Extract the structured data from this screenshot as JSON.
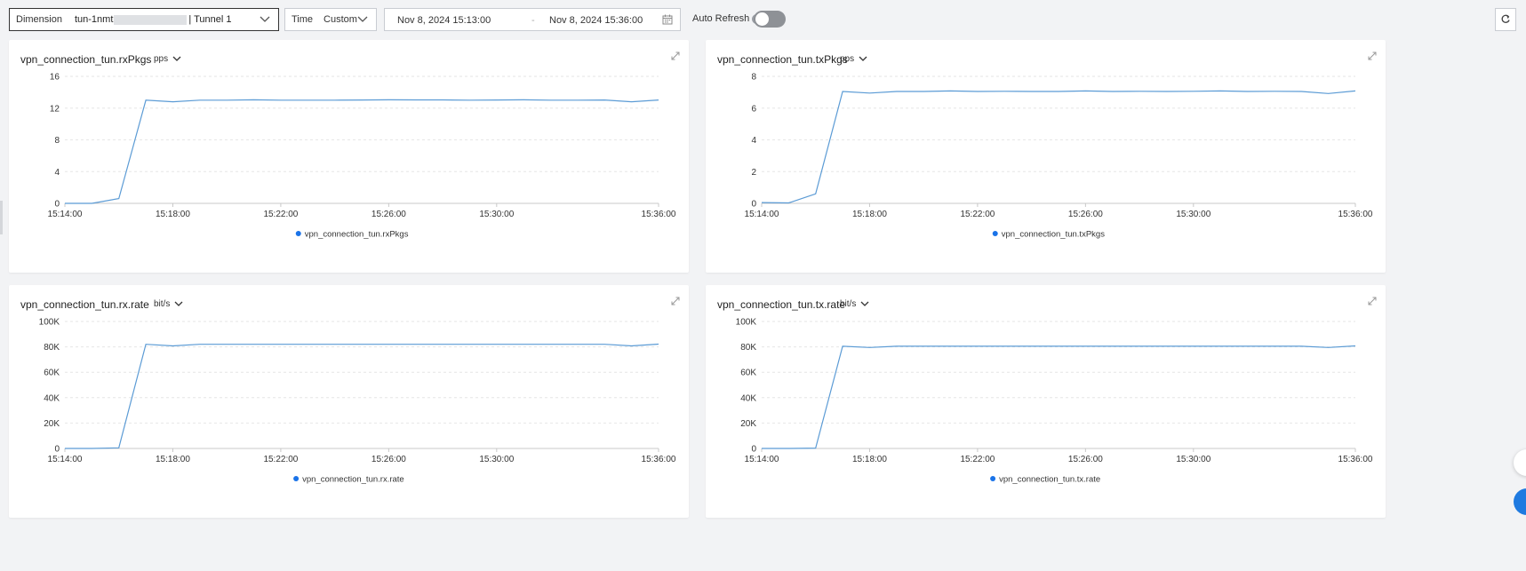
{
  "toolbar": {
    "dimension_label": "Dimension",
    "dimension_value_prefix": "tun-1nmt",
    "dimension_value_suffix": "| Tunnel 1",
    "time_label": "Time",
    "time_value": "Custom",
    "range_start": "Nov 8, 2024 15:13:00",
    "range_sep": "-",
    "range_end": "Nov 8, 2024 15:36:00",
    "auto_refresh_label": "Auto Refresh",
    "auto_refresh_help": "?",
    "auto_refresh_on": false
  },
  "colors": {
    "series": "#5b9bd5",
    "legend_dot": "#1a73e8",
    "grid": "#e6e6e6",
    "axis": "#c8c8c8"
  },
  "panels": [
    {
      "title": "vpn_connection_tun.rxPkgs",
      "unit": "pps"
    },
    {
      "title": "vpn_connection_tun.txPkgs",
      "unit": "pps"
    },
    {
      "title": "vpn_connection_tun.rx.rate",
      "unit": "bit/s"
    },
    {
      "title": "vpn_connection_tun.tx.rate",
      "unit": "bit/s"
    }
  ],
  "chart_data": [
    {
      "type": "line",
      "x_ticks": [
        "15:14:00",
        "15:18:00",
        "15:22:00",
        "15:26:00",
        "15:30:00",
        "15:36:00"
      ],
      "x_tick_minutes": [
        0,
        4,
        8,
        12,
        16,
        22
      ],
      "y_ticks": [
        "0",
        "4",
        "8",
        "12",
        "16"
      ],
      "ylim": [
        0,
        16
      ],
      "grid": true,
      "legend_position": "bottom",
      "series": [
        {
          "name": "vpn_connection_tun.rxPkgs",
          "x": [
            0,
            1,
            2,
            3,
            4,
            5,
            6,
            7,
            8,
            9,
            10,
            11,
            12,
            13,
            14,
            15,
            16,
            17,
            18,
            19,
            20,
            21,
            22
          ],
          "values": [
            0,
            0,
            0.6,
            13.0,
            12.8,
            13.0,
            13.0,
            13.05,
            13.0,
            13.0,
            13.0,
            13.02,
            13.05,
            13.03,
            13.03,
            13.0,
            13.02,
            13.05,
            13.0,
            13.0,
            13.02,
            12.8,
            13.02
          ]
        }
      ]
    },
    {
      "type": "line",
      "x_ticks": [
        "15:14:00",
        "15:18:00",
        "15:22:00",
        "15:26:00",
        "15:30:00",
        "15:36:00"
      ],
      "x_tick_minutes": [
        0,
        4,
        8,
        12,
        16,
        22
      ],
      "y_ticks": [
        "0",
        "2",
        "4",
        "6",
        "8"
      ],
      "ylim": [
        0,
        8
      ],
      "grid": true,
      "legend_position": "bottom",
      "series": [
        {
          "name": "vpn_connection_tun.txPkgs",
          "x": [
            0,
            1,
            2,
            3,
            4,
            5,
            6,
            7,
            8,
            9,
            10,
            11,
            12,
            13,
            14,
            15,
            16,
            17,
            18,
            19,
            20,
            21,
            22
          ],
          "values": [
            0.05,
            0.03,
            0.6,
            7.05,
            6.95,
            7.05,
            7.05,
            7.08,
            7.05,
            7.06,
            7.05,
            7.05,
            7.08,
            7.05,
            7.06,
            7.05,
            7.06,
            7.08,
            7.05,
            7.06,
            7.05,
            6.92,
            7.08
          ]
        }
      ]
    },
    {
      "type": "line",
      "x_ticks": [
        "15:14:00",
        "15:18:00",
        "15:22:00",
        "15:26:00",
        "15:30:00",
        "15:36:00"
      ],
      "x_tick_minutes": [
        0,
        4,
        8,
        12,
        16,
        22
      ],
      "y_ticks": [
        "0",
        "20K",
        "40K",
        "60K",
        "80K",
        "100K"
      ],
      "ylim": [
        0,
        100000
      ],
      "grid": true,
      "legend_position": "bottom",
      "series": [
        {
          "name": "vpn_connection_tun.rx.rate",
          "x": [
            0,
            1,
            2,
            3,
            4,
            5,
            6,
            7,
            8,
            9,
            10,
            11,
            12,
            13,
            14,
            15,
            16,
            17,
            18,
            19,
            20,
            21,
            22
          ],
          "values": [
            0,
            0,
            500,
            82000,
            80800,
            82000,
            82000,
            82000,
            82000,
            82000,
            82000,
            82000,
            82000,
            82000,
            82000,
            82000,
            82000,
            82000,
            82000,
            82000,
            82000,
            80800,
            82200
          ]
        }
      ]
    },
    {
      "type": "line",
      "x_ticks": [
        "15:14:00",
        "15:18:00",
        "15:22:00",
        "15:26:00",
        "15:30:00",
        "15:36:00"
      ],
      "x_tick_minutes": [
        0,
        4,
        8,
        12,
        16,
        22
      ],
      "y_ticks": [
        "0",
        "20K",
        "40K",
        "60K",
        "80K",
        "100K"
      ],
      "ylim": [
        0,
        100000
      ],
      "grid": true,
      "legend_position": "bottom",
      "series": [
        {
          "name": "vpn_connection_tun.tx.rate",
          "x": [
            0,
            1,
            2,
            3,
            4,
            5,
            6,
            7,
            8,
            9,
            10,
            11,
            12,
            13,
            14,
            15,
            16,
            17,
            18,
            19,
            20,
            21,
            22
          ],
          "values": [
            0,
            0,
            300,
            80500,
            79500,
            80500,
            80500,
            80500,
            80500,
            80500,
            80500,
            80500,
            80500,
            80500,
            80500,
            80500,
            80500,
            80500,
            80500,
            80500,
            80500,
            79500,
            80800
          ]
        }
      ]
    }
  ]
}
